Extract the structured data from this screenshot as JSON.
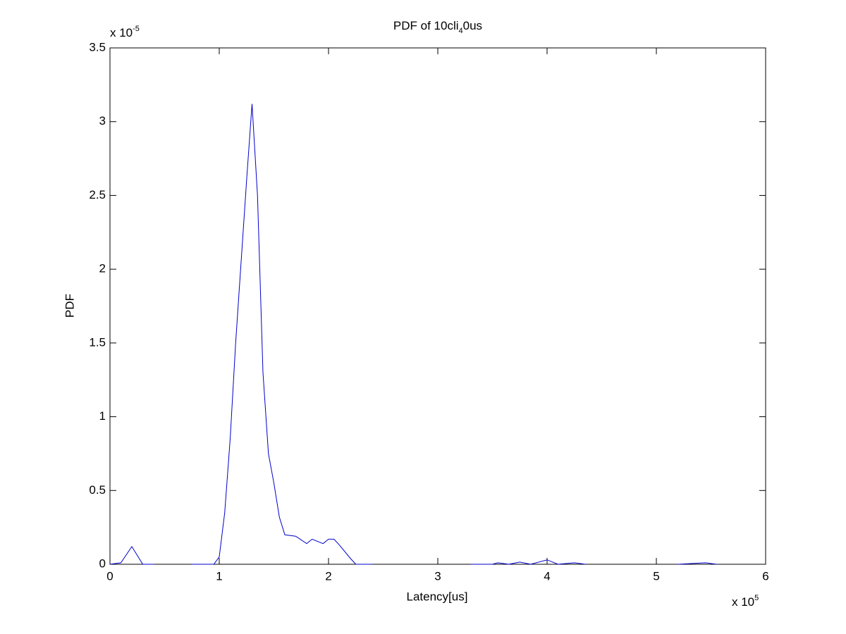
{
  "chart_data": {
    "type": "line",
    "title": [
      "PDF of 10cli",
      "4",
      "0us"
    ],
    "x_label": "Latency[us]",
    "y_label": "PDF",
    "x_multiplier": {
      "base": "x 10",
      "exponent": "5"
    },
    "y_multiplier": {
      "base": "x 10",
      "exponent": "-5"
    },
    "x": [
      0,
      0.1,
      0.2,
      0.3,
      0.4,
      0.6,
      0.75,
      0.85,
      0.95,
      1.0,
      1.05,
      1.1,
      1.15,
      1.2,
      1.25,
      1.3,
      1.35,
      1.4,
      1.45,
      1.5,
      1.55,
      1.6,
      1.7,
      1.8,
      1.85,
      1.95,
      2.0,
      2.05,
      2.1,
      2.2,
      2.25,
      2.4,
      3.0,
      3.3,
      3.5,
      3.55,
      3.65,
      3.75,
      3.85,
      4.0,
      4.1,
      4.25,
      4.35,
      5.0,
      5.2,
      5.45,
      5.55
    ],
    "series": [
      {
        "color": "#0000cc",
        "values": [
          0,
          0.01,
          0.12,
          0,
          0,
          null,
          0,
          0,
          0,
          0.05,
          0.35,
          0.85,
          1.5,
          2.05,
          2.6,
          3.12,
          2.5,
          1.3,
          0.75,
          0.55,
          0.32,
          0.2,
          0.19,
          0.14,
          0.17,
          0.14,
          0.17,
          0.17,
          0.13,
          0.04,
          0,
          0,
          null,
          0,
          0,
          0.01,
          0,
          0.015,
          0,
          0.03,
          0,
          0.01,
          0,
          null,
          0,
          0.01,
          0
        ]
      }
    ],
    "xlim": [
      0,
      6
    ],
    "ylim": [
      0,
      3.5
    ],
    "xticks": [
      0,
      1,
      2,
      3,
      4,
      5,
      6
    ],
    "yticks": [
      0,
      0.5,
      1,
      1.5,
      2,
      2.5,
      3,
      3.5
    ],
    "grid": false
  }
}
